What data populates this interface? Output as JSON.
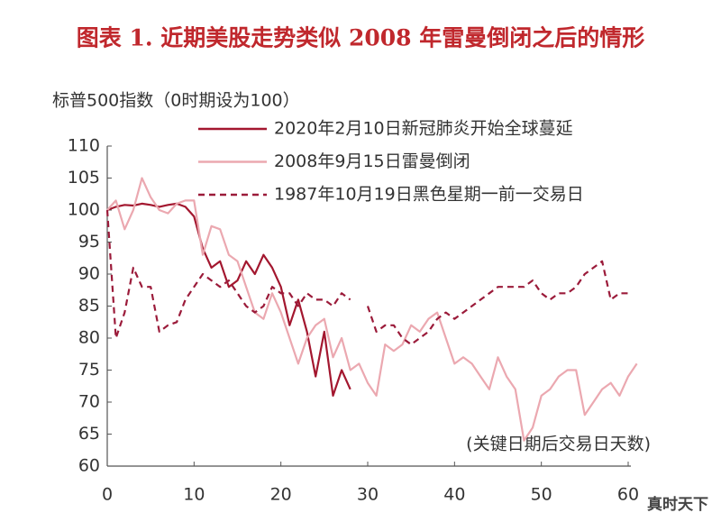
{
  "chart_data": {
    "type": "line",
    "title": "图表 1. 近期美股走势类似 2008 年雷曼倒闭之后的情形",
    "y_label": "标普500指数（0时期设为100）",
    "x_label": "(关键日期后交易日天数)",
    "watermark": "真时天下",
    "x": [
      0,
      1,
      2,
      3,
      4,
      5,
      6,
      7,
      8,
      9,
      10,
      11,
      12,
      13,
      14,
      15,
      16,
      17,
      18,
      19,
      20,
      21,
      22,
      23,
      24,
      25,
      26,
      27,
      28,
      29,
      30,
      31,
      32,
      33,
      34,
      35,
      36,
      37,
      38,
      39,
      40,
      41,
      42,
      43,
      44,
      45,
      46,
      47,
      48,
      49,
      50,
      51,
      52,
      53,
      54,
      55,
      56,
      57,
      58,
      59,
      60,
      61
    ],
    "xlim": [
      0,
      61
    ],
    "xticks": [
      0,
      10,
      20,
      30,
      40,
      50,
      60
    ],
    "ylim": [
      60,
      110
    ],
    "yticks": [
      60,
      65,
      70,
      75,
      80,
      85,
      90,
      95,
      100,
      105,
      110
    ],
    "grid": false,
    "series": [
      {
        "name": "2020年2月10日新冠肺炎开始全球蔓延",
        "color": "#a3172f",
        "dash": false,
        "values": [
          100,
          100.5,
          100.8,
          100.7,
          101,
          100.8,
          100.5,
          100.8,
          101,
          100.5,
          99,
          94,
          91,
          92,
          88,
          89,
          92,
          90,
          93,
          91,
          88,
          82,
          86,
          81,
          74,
          81,
          71,
          75,
          72,
          null,
          null,
          null,
          null,
          null,
          null,
          null,
          null,
          null,
          null,
          null,
          null,
          null,
          null,
          null,
          null,
          null,
          null,
          null,
          null,
          null,
          null,
          null,
          null,
          null,
          null,
          null,
          null,
          null,
          null,
          null,
          null,
          null
        ]
      },
      {
        "name": "2008年9月15日雷曼倒闭",
        "color": "#eba8b0",
        "dash": false,
        "values": [
          100,
          101.5,
          97,
          100,
          105,
          102,
          100,
          99.5,
          101,
          101.5,
          101.5,
          93,
          97.5,
          97,
          93,
          92,
          88,
          84,
          83,
          87,
          84,
          80,
          76,
          80,
          82,
          83,
          77,
          80,
          75,
          76,
          73,
          71,
          79,
          78,
          79,
          82,
          81,
          83,
          84,
          80,
          76,
          77,
          76,
          74,
          72,
          77,
          74,
          72,
          64,
          66,
          71,
          72,
          74,
          75,
          75,
          68,
          70,
          72,
          73,
          71,
          74,
          76
        ]
      },
      {
        "name": "1987年10月19日黑色星期一前一交易日",
        "color": "#9b1b3a",
        "dash": true,
        "values": [
          100,
          80,
          84,
          91,
          88,
          88,
          81,
          82,
          82.5,
          86,
          88,
          90,
          89,
          88,
          89,
          87,
          85,
          84,
          85,
          88,
          87,
          87,
          85,
          87,
          86,
          86,
          85,
          87,
          86,
          null,
          85,
          81,
          82,
          82,
          80,
          79,
          80,
          81,
          83,
          84,
          83,
          84,
          85,
          86,
          87,
          88,
          88,
          88,
          88,
          89,
          87,
          86,
          87,
          87,
          88,
          90,
          91,
          92,
          86,
          87,
          87,
          null
        ]
      }
    ]
  }
}
